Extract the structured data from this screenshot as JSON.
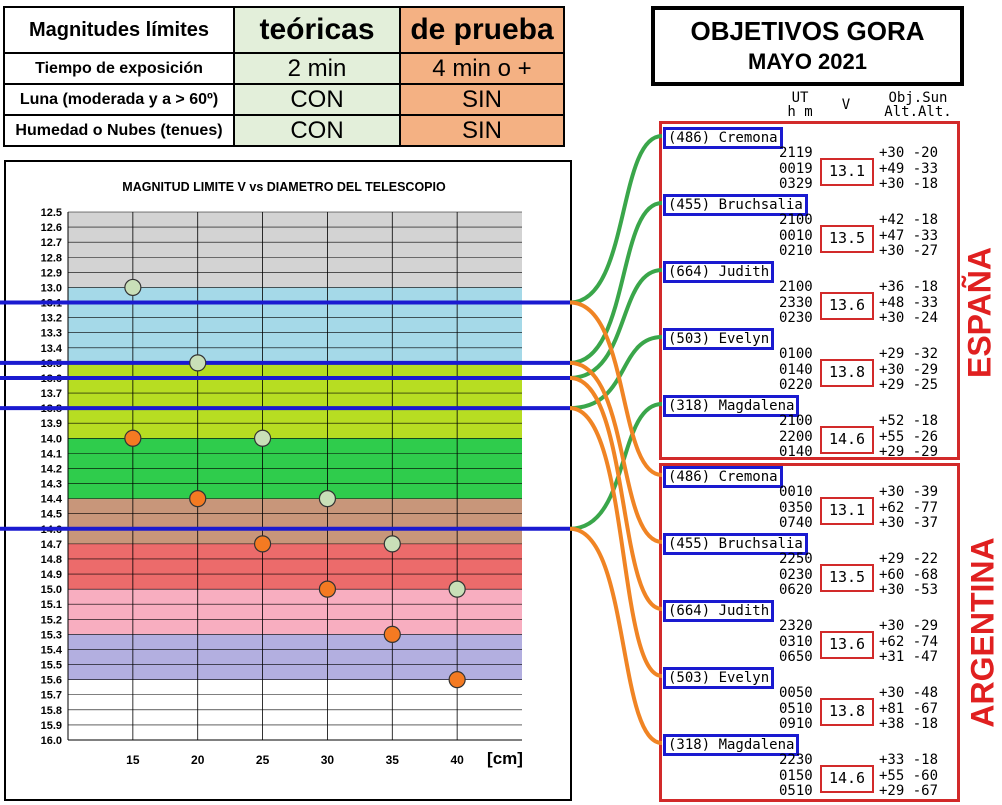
{
  "conditions": {
    "header": [
      "Magnitudes límites",
      "teóricas",
      "de prueba"
    ],
    "rows": [
      [
        "Tiempo de exposición",
        "2 min",
        "4 min o +"
      ],
      [
        "Luna (moderada y a > 60º)",
        "CON",
        "SIN"
      ],
      [
        "Humedad o Nubes (tenues)",
        "CON",
        "SIN"
      ]
    ]
  },
  "title": {
    "line1": "OBJETIVOS GORA",
    "line2": "MAYO 2021"
  },
  "column_headers": {
    "ut": "UT\nh m",
    "v": "V",
    "alt": "Obj.Sun\nAlt.Alt."
  },
  "colors": {
    "band_gray": "#d3d3d3",
    "band_blue": "#a5d9e8",
    "band_lime": "#b7dd22",
    "band_green": "#2fcc4c",
    "band_brown": "#c8967a",
    "band_red": "#ec6b6b",
    "band_pink": "#f8aec0",
    "band_lavender": "#b3afe0",
    "line_blue": "#1a1ad0",
    "curve_green": "#3aa64a",
    "curve_orange": "#f08424",
    "region_red": "#d22a2a"
  },
  "chart_data": {
    "type": "scatter",
    "title": "MAGNITUD LIMITE V vs DIAMETRO DEL TELESCOPIO",
    "xlabel": "[cm]",
    "x_ticks": [
      15,
      20,
      25,
      30,
      35,
      40
    ],
    "xlim": [
      10,
      45
    ],
    "ylim": [
      12.5,
      16.0
    ],
    "y_reversed": true,
    "y_ticks": [
      "12.5",
      "12.6",
      "12.7",
      "12.8",
      "12.9",
      "13.0",
      "13.1",
      "13.2",
      "13.3",
      "13.4",
      "13.5",
      "13.6",
      "13.7",
      "13.8",
      "13.9",
      "14.0",
      "14.1",
      "14.2",
      "14.3",
      "14.4",
      "14.5",
      "14.6",
      "14.7",
      "14.8",
      "14.9",
      "15.0",
      "15.1",
      "15.2",
      "15.3",
      "15.4",
      "15.5",
      "15.6",
      "15.7",
      "15.8",
      "15.9",
      "16.0"
    ],
    "bands": [
      {
        "from": 12.5,
        "to": 13.0,
        "color": "band_gray"
      },
      {
        "from": 13.0,
        "to": 13.5,
        "color": "band_blue"
      },
      {
        "from": 13.5,
        "to": 14.0,
        "color": "band_lime"
      },
      {
        "from": 14.0,
        "to": 14.4,
        "color": "band_green"
      },
      {
        "from": 14.4,
        "to": 14.7,
        "color": "band_brown"
      },
      {
        "from": 14.7,
        "to": 15.0,
        "color": "band_red"
      },
      {
        "from": 15.0,
        "to": 15.3,
        "color": "band_pink"
      },
      {
        "from": 15.3,
        "to": 15.6,
        "color": "band_lavender"
      },
      {
        "from": 15.6,
        "to": 16.0,
        "color": "#ffffff"
      }
    ],
    "grid": true,
    "series": [
      {
        "name": "teóricas",
        "color": "#c9dfb8",
        "points": [
          [
            15,
            13.0
          ],
          [
            20,
            13.5
          ],
          [
            25,
            14.0
          ],
          [
            30,
            14.4
          ],
          [
            35,
            14.7
          ],
          [
            40,
            15.0
          ]
        ]
      },
      {
        "name": "de prueba",
        "color": "#f47a22",
        "points": [
          [
            15,
            14.0
          ],
          [
            20,
            14.4
          ],
          [
            25,
            14.7
          ],
          [
            30,
            15.0
          ],
          [
            35,
            15.3
          ],
          [
            40,
            15.6
          ]
        ]
      }
    ],
    "reference_lines": [
      13.1,
      13.5,
      13.6,
      13.8,
      14.6
    ]
  },
  "regions": [
    {
      "label": "ESPAÑA",
      "objects": [
        {
          "name": "(486) Cremona",
          "v": "13.1",
          "rows": [
            [
              "2119",
              "+30 -20"
            ],
            [
              "0019",
              "+49 -33"
            ],
            [
              "0329",
              "+30 -18"
            ]
          ]
        },
        {
          "name": "(455) Bruchsalia",
          "v": "13.5",
          "rows": [
            [
              "2100",
              "+42 -18"
            ],
            [
              "0010",
              "+47 -33"
            ],
            [
              "0210",
              "+30 -27"
            ]
          ]
        },
        {
          "name": "(664) Judith",
          "v": "13.6",
          "rows": [
            [
              "2100",
              "+36 -18"
            ],
            [
              "2330",
              "+48 -33"
            ],
            [
              "0230",
              "+30 -24"
            ]
          ]
        },
        {
          "name": "(503) Evelyn",
          "v": "13.8",
          "rows": [
            [
              "0100",
              "+29 -32"
            ],
            [
              "0140",
              "+30 -29"
            ],
            [
              "0220",
              "+29 -25"
            ]
          ]
        },
        {
          "name": "(318) Magdalena",
          "v": "14.6",
          "rows": [
            [
              "2100",
              "+52 -18"
            ],
            [
              "2200",
              "+55 -26"
            ],
            [
              "0140",
              "+29 -29"
            ]
          ]
        }
      ]
    },
    {
      "label": "ARGENTINA",
      "objects": [
        {
          "name": "(486) Cremona",
          "v": "13.1",
          "rows": [
            [
              "0010",
              "+30 -39"
            ],
            [
              "0350",
              "+62 -77"
            ],
            [
              "0740",
              "+30 -37"
            ]
          ]
        },
        {
          "name": "(455) Bruchsalia",
          "v": "13.5",
          "rows": [
            [
              "2250",
              "+29 -22"
            ],
            [
              "0230",
              "+60 -68"
            ],
            [
              "0620",
              "+30 -53"
            ]
          ]
        },
        {
          "name": "(664) Judith",
          "v": "13.6",
          "rows": [
            [
              "2320",
              "+30 -29"
            ],
            [
              "0310",
              "+62 -74"
            ],
            [
              "0650",
              "+31 -47"
            ]
          ]
        },
        {
          "name": "(503) Evelyn",
          "v": "13.8",
          "rows": [
            [
              "0050",
              "+30 -48"
            ],
            [
              "0510",
              "+81 -67"
            ],
            [
              "0910",
              "+38 -18"
            ]
          ]
        },
        {
          "name": "(318) Magdalena",
          "v": "14.6",
          "rows": [
            [
              "2230",
              "+33 -18"
            ],
            [
              "0150",
              "+55 -60"
            ],
            [
              "0510",
              "+29 -67"
            ]
          ]
        }
      ]
    }
  ]
}
